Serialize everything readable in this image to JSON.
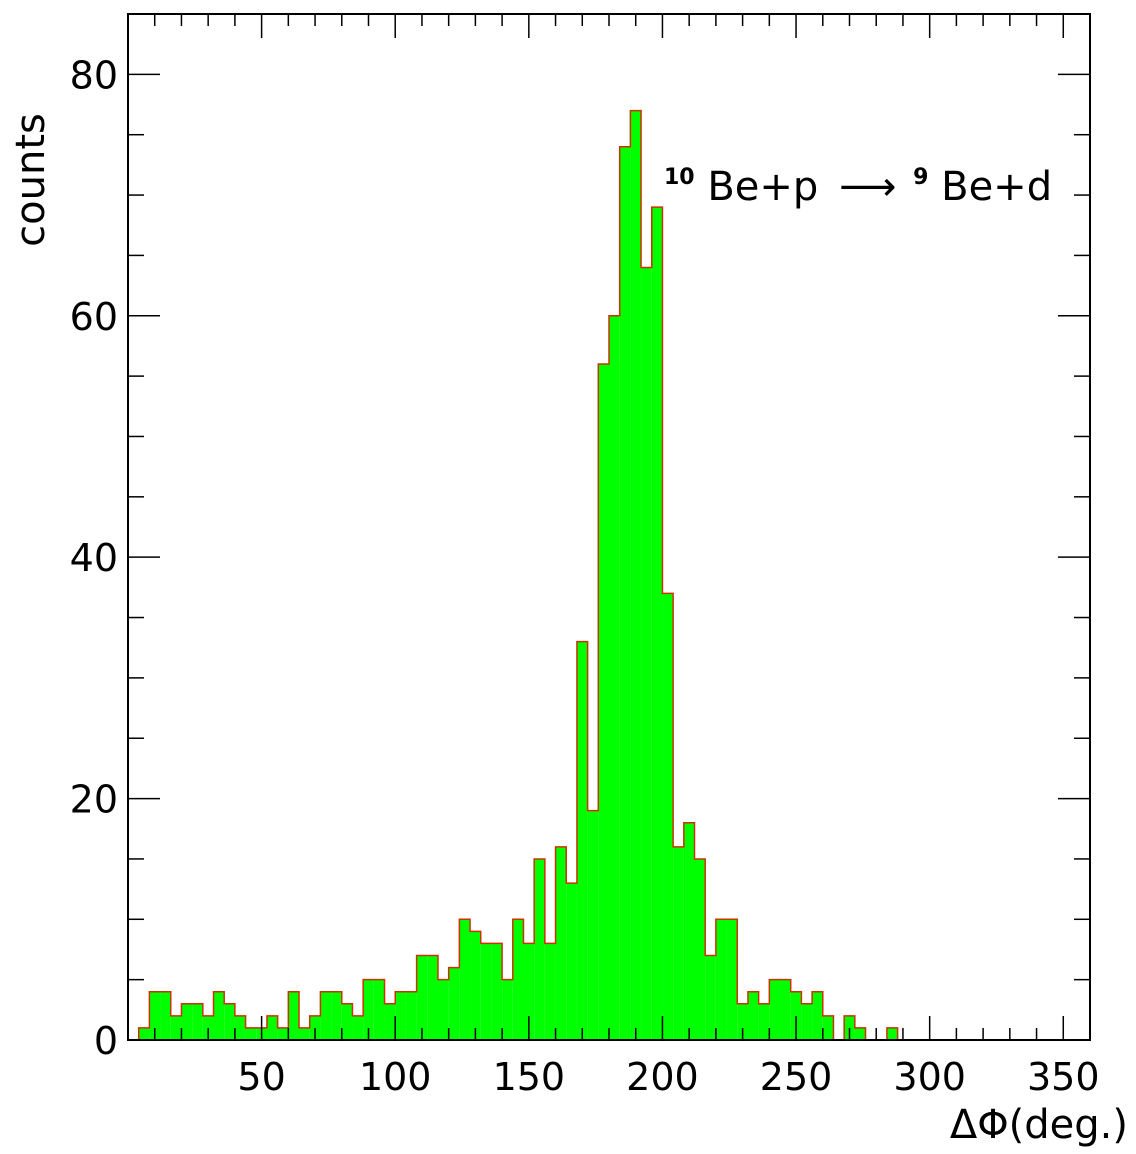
{
  "chart_data": {
    "type": "bar",
    "xlabel": "ΔΦ(deg.)",
    "ylabel": "counts",
    "xlim": [
      0,
      360
    ],
    "ylim": [
      0,
      85
    ],
    "bin_width": 4,
    "x_ticks": [
      50,
      100,
      150,
      200,
      250,
      300,
      350
    ],
    "y_ticks": [
      0,
      20,
      40,
      60,
      80
    ],
    "annotation": {
      "parts": [
        {
          "sup": "10",
          "text": "Be+p"
        },
        {
          "arrow": "⟶"
        },
        {
          "sup": "9",
          "text": "Be+d"
        }
      ]
    },
    "colors": {
      "fill": "#00ff00",
      "edge": "#cc3300"
    },
    "bins_x_start": [
      4,
      8,
      12,
      16,
      20,
      24,
      28,
      32,
      36,
      40,
      44,
      48,
      52,
      56,
      60,
      64,
      68,
      72,
      76,
      80,
      84,
      88,
      92,
      96,
      100,
      104,
      108,
      112,
      116,
      120,
      124,
      128,
      132,
      136,
      140,
      144,
      148,
      152,
      156,
      160,
      164,
      168,
      172,
      176,
      180,
      184,
      188,
      192,
      196,
      200,
      204,
      208,
      212,
      216,
      220,
      224,
      228,
      232,
      236,
      240,
      244,
      248,
      252,
      256,
      260,
      264,
      268,
      272,
      276,
      280,
      284,
      288
    ],
    "values": [
      1,
      4,
      4,
      2,
      3,
      3,
      2,
      4,
      3,
      2,
      1,
      1,
      2,
      1,
      4,
      1,
      2,
      4,
      4,
      3,
      2,
      5,
      5,
      3,
      4,
      4,
      7,
      7,
      5,
      6,
      10,
      9,
      8,
      8,
      5,
      10,
      8,
      15,
      8,
      16,
      13,
      33,
      19,
      56,
      60,
      74,
      77,
      64,
      69,
      37,
      16,
      18,
      15,
      7,
      10,
      10,
      3,
      4,
      3,
      5,
      5,
      4,
      3,
      4,
      2,
      0,
      2,
      1,
      0,
      0,
      1,
      0
    ]
  }
}
